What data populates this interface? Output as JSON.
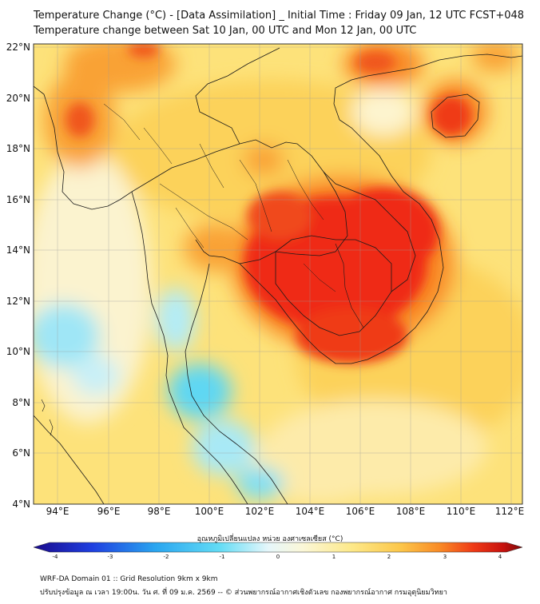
{
  "header": {
    "title": "Temperature Change (°C) - [Data Assimilation] _ Initial Time : Friday 09 Jan, 12 UTC FCST+048",
    "subtitle": "Temperature change between Sat 10 Jan, 00 UTC and Mon 12 Jan, 00 UTC"
  },
  "map": {
    "lat_labels": [
      "22°N",
      "20°N",
      "18°N",
      "16°N",
      "14°N",
      "12°N",
      "10°N",
      "8°N",
      "6°N",
      "4°N"
    ],
    "lon_labels": [
      "94°E",
      "96°E",
      "98°E",
      "100°E",
      "102°E",
      "104°E",
      "106°E",
      "108°E",
      "110°E",
      "112°E"
    ]
  },
  "colorbar": {
    "title": "อุณหภูมิเปลี่ยนแปลง หน่วย องศาเซลเซียส (°C)",
    "ticks": [
      "-4",
      "-3",
      "-2",
      "-1",
      "0",
      "1",
      "2",
      "3",
      "4"
    ],
    "range": [
      -4,
      4
    ],
    "colors": [
      "#1a0a8c",
      "#1f3fe0",
      "#2aa6f0",
      "#63dcf5",
      "#d6f3fb",
      "#fbf7d8",
      "#fde98a",
      "#fcc74a",
      "#f98b26",
      "#ef3a16",
      "#c8120e",
      "#7a0a0a"
    ]
  },
  "footer": {
    "line1": "WRF-DA Domain 01 :: Grid Resolution 9km x 9km",
    "line2": "ปรับปรุงข้อมูล ณ เวลา 19:00น. วัน ศ. ที่ 09 ม.ค. 2569 -- © ส่วนพยากรณ์อากาศเชิงตัวเลข กองพยากรณ์อากาศ กรมอุตุนิยมวิทยา"
  }
}
